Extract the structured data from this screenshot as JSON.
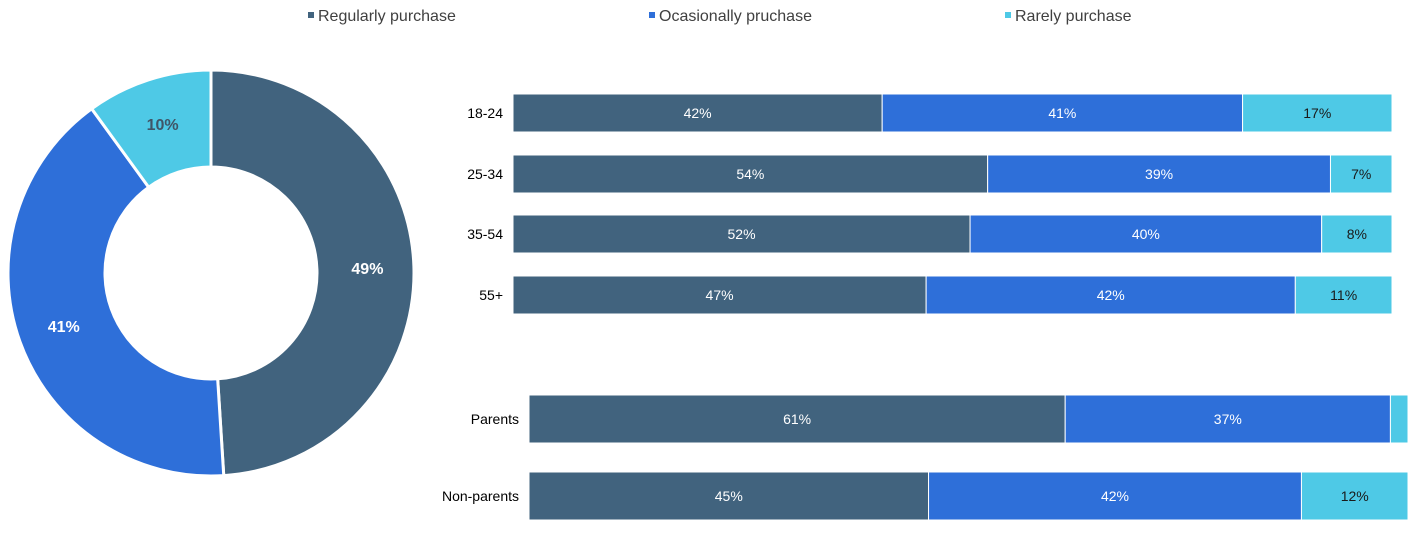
{
  "legend": [
    {
      "label": "Regularly purchase",
      "color": "#41637e"
    },
    {
      "label": "Ocasionally pruchase",
      "color": "#2e6fd9"
    },
    {
      "label": "Rarely purchase",
      "color": "#4ec9e6"
    }
  ],
  "chart_data": [
    {
      "type": "donut",
      "series": [
        "Regularly purchase",
        "Ocasionally pruchase",
        "Rarely purchase"
      ],
      "values": [
        49,
        41,
        10
      ],
      "labels": [
        "49%",
        "41%",
        "10%"
      ],
      "colors": [
        "#41637e",
        "#2e6fd9",
        "#4ec9e6"
      ]
    },
    {
      "type": "bar",
      "orientation": "horizontal",
      "stacked": true,
      "categories": [
        "18-24",
        "25-34",
        "35-54",
        "55+"
      ],
      "series": [
        {
          "name": "Regularly purchase",
          "values": [
            42,
            54,
            52,
            47
          ],
          "labels": [
            "42%",
            "54%",
            "52%",
            "47%"
          ]
        },
        {
          "name": "Ocasionally pruchase",
          "values": [
            41,
            39,
            40,
            42
          ],
          "labels": [
            "41%",
            "39%",
            "40%",
            "42%"
          ]
        },
        {
          "name": "Rarely purchase",
          "values": [
            17,
            7,
            8,
            11
          ],
          "labels": [
            "17%",
            "7%",
            "8%",
            "11%"
          ]
        }
      ]
    },
    {
      "type": "bar",
      "orientation": "horizontal",
      "stacked": true,
      "categories": [
        "Parents",
        "Non-parents"
      ],
      "series": [
        {
          "name": "Regularly purchase",
          "values": [
            61,
            45
          ],
          "labels": [
            "61%",
            "45%"
          ]
        },
        {
          "name": "Ocasionally pruchase",
          "values": [
            37,
            42
          ],
          "labels": [
            "37%",
            "42%"
          ]
        },
        {
          "name": "Rarely purchase",
          "values": [
            2,
            12
          ],
          "labels": [
            "",
            "12%"
          ]
        }
      ]
    }
  ]
}
